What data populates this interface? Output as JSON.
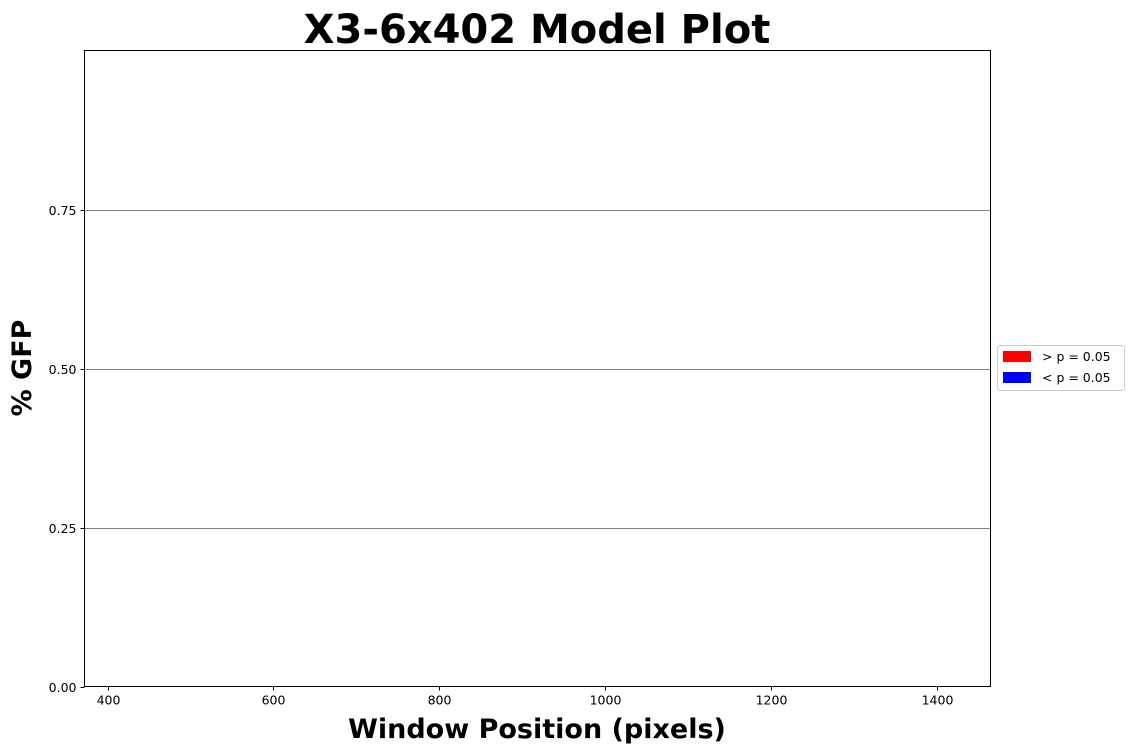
{
  "chart_data": {
    "type": "bar",
    "title": "X3-6x402 Model Plot",
    "xlabel": "Window Position (pixels)",
    "ylabel": "% GFP",
    "xlim": [
      372,
      1465
    ],
    "ylim": [
      0,
      1.0
    ],
    "x_ticks": [
      400,
      600,
      800,
      1000,
      1200,
      1400
    ],
    "y_ticks": [
      0.0,
      0.25,
      0.5,
      0.75
    ],
    "y_tick_labels": [
      "0.00",
      "0.25",
      "0.50",
      "0.75"
    ],
    "hgrid": [
      0.25,
      0.5,
      0.75
    ],
    "grid_color": "#808080",
    "series": [],
    "legend": {
      "placement": "right-center-outside",
      "entries": [
        {
          "label": "> p = 0.05",
          "color": "#ff0000"
        },
        {
          "label": "< p = 0.05",
          "color": "#0000ff"
        }
      ]
    }
  }
}
